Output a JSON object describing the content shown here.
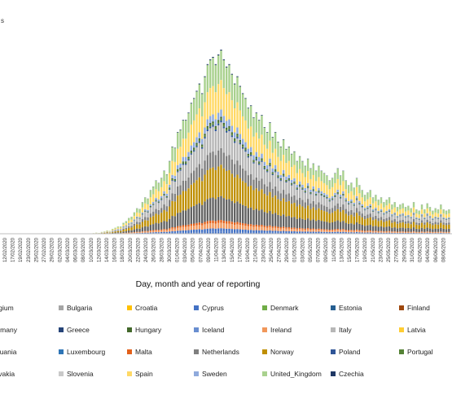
{
  "chart_data": {
    "type": "bar",
    "stacked": true,
    "title": "",
    "xlabel": "Day, month and year of reporting",
    "ylabel": "",
    "y_axis_fragment": "s",
    "grid": false,
    "legend_position": "bottom",
    "tick_labels": [
      "12/02/2020",
      "17/02/2020",
      "19/02/2020",
      "23/02/2020",
      "25/02/2020",
      "27/02/2020",
      "29/02/2020",
      "02/03/2020",
      "04/03/2020",
      "06/03/2020",
      "08/03/2020",
      "10/03/2020",
      "12/03/2020",
      "14/03/2020",
      "16/03/2020",
      "18/03/2020",
      "20/03/2020",
      "22/03/2020",
      "24/03/2020",
      "26/03/2020",
      "28/03/2020",
      "30/03/2020",
      "01/04/2020",
      "03/04/2020",
      "05/04/2020",
      "07/04/2020",
      "09/04/2020",
      "11/04/2020",
      "13/04/2020",
      "15/04/2020",
      "17/04/2020",
      "19/04/2020",
      "21/04/2020",
      "23/04/2020",
      "25/04/2020",
      "27/04/2020",
      "29/04/2020",
      "01/05/2020",
      "03/05/2020",
      "05/05/2020",
      "07/05/2020",
      "09/05/2020",
      "11/05/2020",
      "13/05/2020",
      "15/05/2020",
      "17/05/2020",
      "19/05/2020",
      "21/05/2020",
      "23/05/2020",
      "25/05/2020",
      "27/05/2020",
      "29/05/2020",
      "31/05/2020",
      "02/06/2020",
      "04/06/2020",
      "06/06/2020",
      "08/06/2020"
    ],
    "daily_totals": [
      0,
      0,
      0,
      0,
      0,
      0,
      0,
      0,
      0,
      0,
      0,
      0,
      0,
      0,
      0,
      0,
      0,
      0,
      0,
      0,
      0,
      0,
      0,
      0,
      0,
      0,
      0,
      0,
      0,
      0,
      0,
      0,
      0,
      2,
      3,
      5,
      4,
      8,
      10,
      14,
      12,
      20,
      25,
      30,
      30,
      45,
      52,
      65,
      70,
      88,
      105,
      102,
      130,
      150,
      145,
      180,
      195,
      220,
      210,
      230,
      260,
      245,
      300,
      360,
      355,
      420,
      430,
      470,
      470,
      500,
      540,
      560,
      590,
      620,
      580,
      650,
      700,
      720,
      730,
      700,
      740,
      760,
      720,
      690,
      700,
      660,
      620,
      650,
      610,
      580,
      560,
      520,
      530,
      480,
      500,
      470,
      490,
      440,
      420,
      460,
      400,
      420,
      380,
      360,
      390,
      350,
      360,
      330,
      340,
      300,
      320,
      300,
      280,
      310,
      270,
      290,
      260,
      280,
      260,
      250,
      240,
      220,
      230,
      250,
      270,
      240,
      260,
      220,
      200,
      210,
      190,
      230,
      200,
      180,
      160,
      170,
      180,
      150,
      160,
      140,
      150,
      130,
      140,
      150,
      120,
      130,
      110,
      120,
      125,
      110,
      115,
      105,
      130,
      100,
      95,
      120,
      100,
      125,
      110,
      95,
      105,
      100,
      120,
      100,
      95,
      100
    ],
    "countries": [
      {
        "name": "Belgium",
        "color": "#4472c4"
      },
      {
        "name": "Bulgaria",
        "color": "#a5a5a5"
      },
      {
        "name": "Croatia",
        "color": "#ffc000"
      },
      {
        "name": "Cyprus",
        "color": "#4472c4"
      },
      {
        "name": "Denmark",
        "color": "#70ad47"
      },
      {
        "name": "Estonia",
        "color": "#255e91"
      },
      {
        "name": "Finland",
        "color": "#9e480e"
      },
      {
        "name": "Germany",
        "color": "#636363"
      },
      {
        "name": "Greece",
        "color": "#264478"
      },
      {
        "name": "Hungary",
        "color": "#43682b"
      },
      {
        "name": "Iceland",
        "color": "#698ed0"
      },
      {
        "name": "Ireland",
        "color": "#f1975a"
      },
      {
        "name": "Italy",
        "color": "#b7b7b7"
      },
      {
        "name": "Latvia",
        "color": "#ffcd33"
      },
      {
        "name": "Lithuania",
        "color": "#3c6e9f"
      },
      {
        "name": "Luxembourg",
        "color": "#2e75b6"
      },
      {
        "name": "Malta",
        "color": "#e2601a"
      },
      {
        "name": "Netherlands",
        "color": "#7f7f7f"
      },
      {
        "name": "Norway",
        "color": "#bf8f00"
      },
      {
        "name": "Poland",
        "color": "#2f5597"
      },
      {
        "name": "Portugal",
        "color": "#548235"
      },
      {
        "name": "Slovakia",
        "color": "#9c4a1a"
      },
      {
        "name": "Slovenia",
        "color": "#c9c9c9"
      },
      {
        "name": "Spain",
        "color": "#ffd966"
      },
      {
        "name": "Sweden",
        "color": "#8faadc"
      },
      {
        "name": "United_Kingdom",
        "color": "#a9d18e"
      },
      {
        "name": "Czechia",
        "color": "#1f3864"
      }
    ],
    "stack_order": [
      "Cyprus",
      "Belgium",
      "Ireland",
      "Malta",
      "Germany",
      "Norway",
      "Netherlands",
      "Italy",
      "Poland",
      "Portugal",
      "Hungary",
      "Sweden",
      "Spain",
      "United_Kingdom",
      "Czechia"
    ],
    "stack_shares": [
      0.01,
      0.02,
      0.03,
      0.015,
      0.13,
      0.17,
      0.09,
      0.14,
      0.01,
      0.01,
      0.01,
      0.04,
      0.16,
      0.16,
      0.005
    ],
    "ymax": 780
  }
}
